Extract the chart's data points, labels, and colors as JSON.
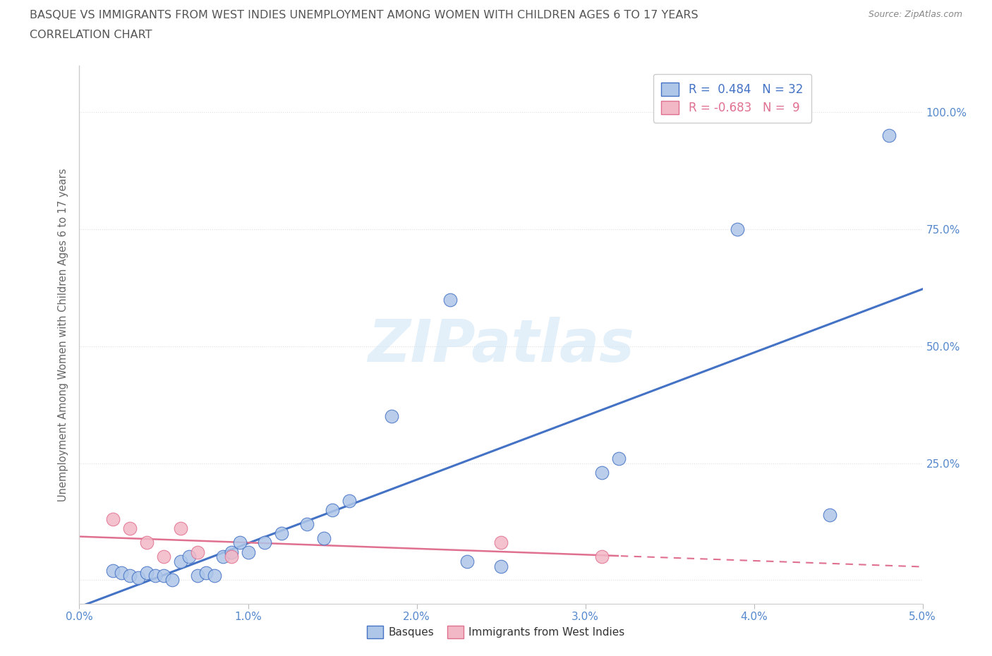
{
  "title_line1": "BASQUE VS IMMIGRANTS FROM WEST INDIES UNEMPLOYMENT AMONG WOMEN WITH CHILDREN AGES 6 TO 17 YEARS",
  "title_line2": "CORRELATION CHART",
  "source": "Source: ZipAtlas.com",
  "ylabel": "Unemployment Among Women with Children Ages 6 to 17 years",
  "xlim": [
    0.0,
    0.05
  ],
  "ylim": [
    -0.05,
    1.1
  ],
  "xticks": [
    0.0,
    0.01,
    0.02,
    0.03,
    0.04,
    0.05
  ],
  "yticks": [
    0.0,
    0.25,
    0.5,
    0.75,
    1.0
  ],
  "xticklabels": [
    "0.0%",
    "1.0%",
    "2.0%",
    "3.0%",
    "4.0%",
    "5.0%"
  ],
  "yticklabels": [
    "",
    "25.0%",
    "50.0%",
    "75.0%",
    "100.0%"
  ],
  "basques_x": [
    0.002,
    0.0025,
    0.003,
    0.0035,
    0.004,
    0.0045,
    0.005,
    0.0055,
    0.006,
    0.0065,
    0.007,
    0.0075,
    0.008,
    0.0085,
    0.009,
    0.0095,
    0.01,
    0.011,
    0.012,
    0.0135,
    0.0145,
    0.015,
    0.016,
    0.0185,
    0.022,
    0.023,
    0.025,
    0.031,
    0.032,
    0.039,
    0.0445,
    0.048
  ],
  "basques_y": [
    0.02,
    0.015,
    0.01,
    0.005,
    0.015,
    0.01,
    0.01,
    0.0,
    0.04,
    0.05,
    0.01,
    0.015,
    0.01,
    0.05,
    0.06,
    0.08,
    0.06,
    0.08,
    0.1,
    0.12,
    0.09,
    0.15,
    0.17,
    0.35,
    0.6,
    0.04,
    0.03,
    0.23,
    0.26,
    0.75,
    0.14,
    0.95
  ],
  "west_indies_x": [
    0.002,
    0.003,
    0.004,
    0.005,
    0.006,
    0.007,
    0.009,
    0.025,
    0.031
  ],
  "west_indies_y": [
    0.13,
    0.11,
    0.08,
    0.05,
    0.11,
    0.06,
    0.05,
    0.08,
    0.05
  ],
  "basques_R": 0.484,
  "basques_N": 32,
  "west_indies_R": -0.683,
  "west_indies_N": 9,
  "blue_color": "#aec6e8",
  "pink_color": "#f2b8c6",
  "blue_line_color": "#4472c4",
  "pink_line_color": "#e07090",
  "background_color": "#ffffff",
  "watermark_text": "ZIPatlas",
  "title_color": "#555555",
  "axis_label_color": "#666666",
  "tick_color": "#5588cc",
  "grid_color": "#e0e0e0"
}
